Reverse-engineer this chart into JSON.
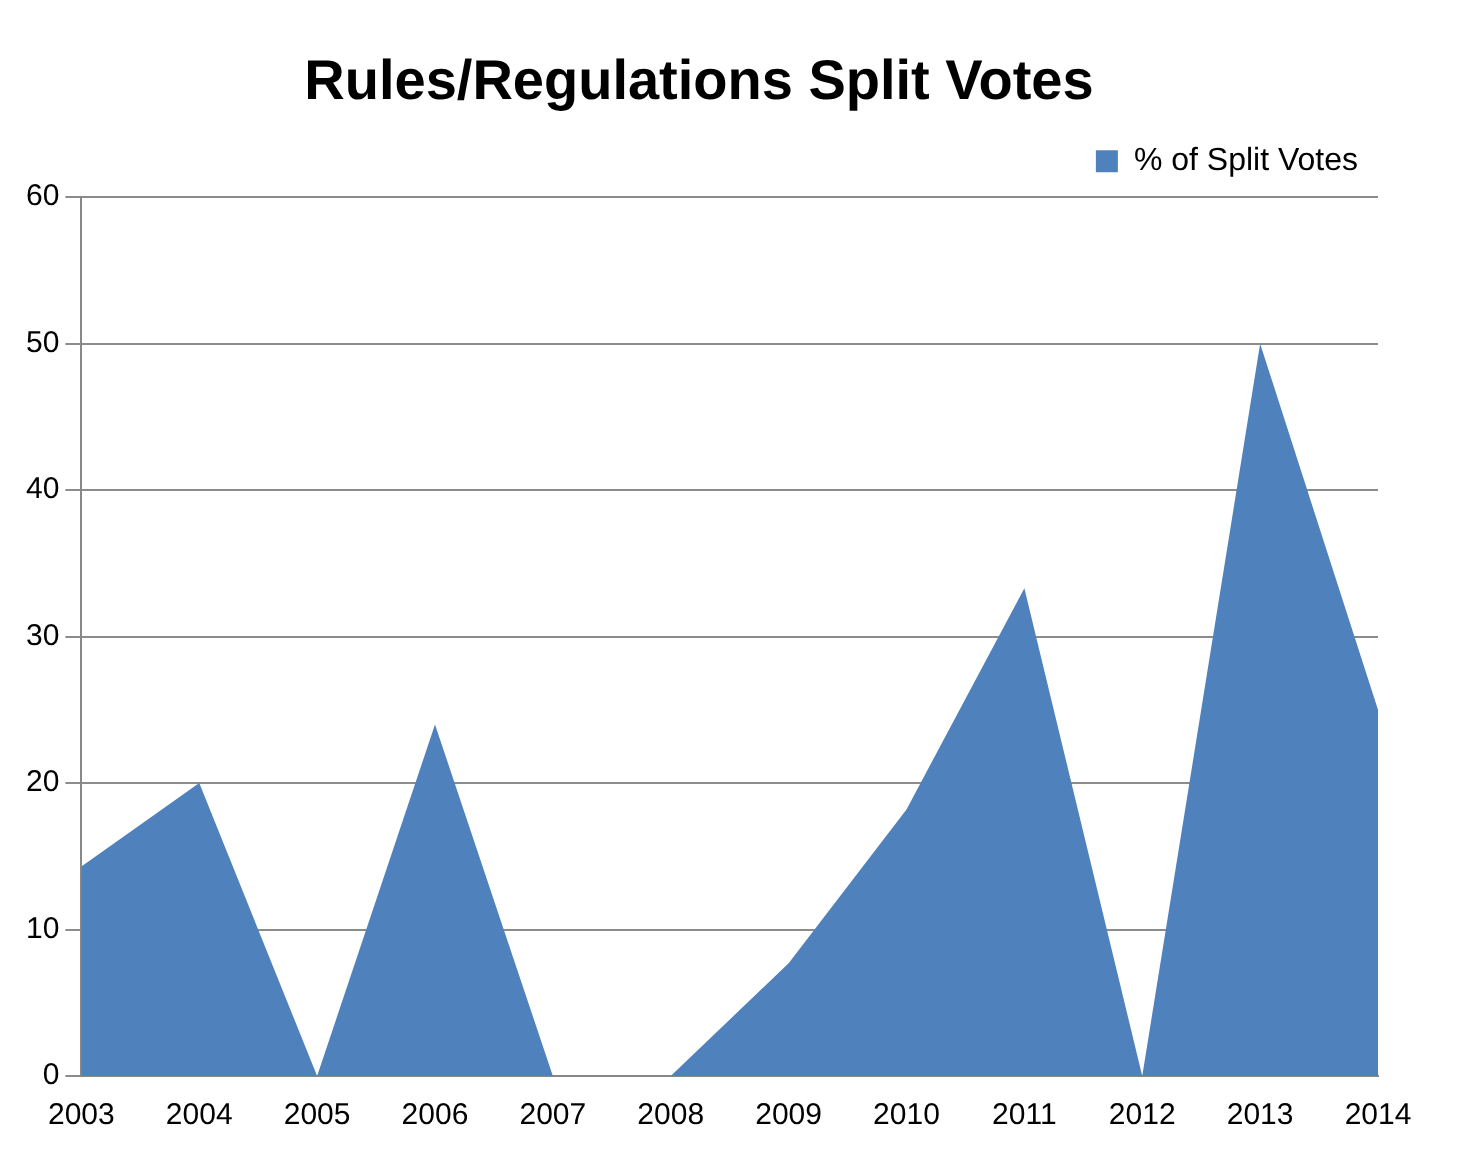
{
  "chart_data": {
    "type": "area",
    "title": "Rules/Regulations Split Votes",
    "categories": [
      "2003",
      "2004",
      "2005",
      "2006",
      "2007",
      "2008",
      "2009",
      "2010",
      "2011",
      "2012",
      "2013",
      "2014"
    ],
    "series": [
      {
        "name": "% of Split Votes",
        "color": "#4f81bd",
        "values": [
          14.3,
          20,
          0,
          24,
          0,
          0,
          7.7,
          18.2,
          33.3,
          0,
          50,
          25
        ]
      }
    ],
    "ylim": [
      0,
      60
    ],
    "yticks": [
      0,
      10,
      20,
      30,
      40,
      50,
      60
    ],
    "grid": "y",
    "legend": "top right"
  }
}
